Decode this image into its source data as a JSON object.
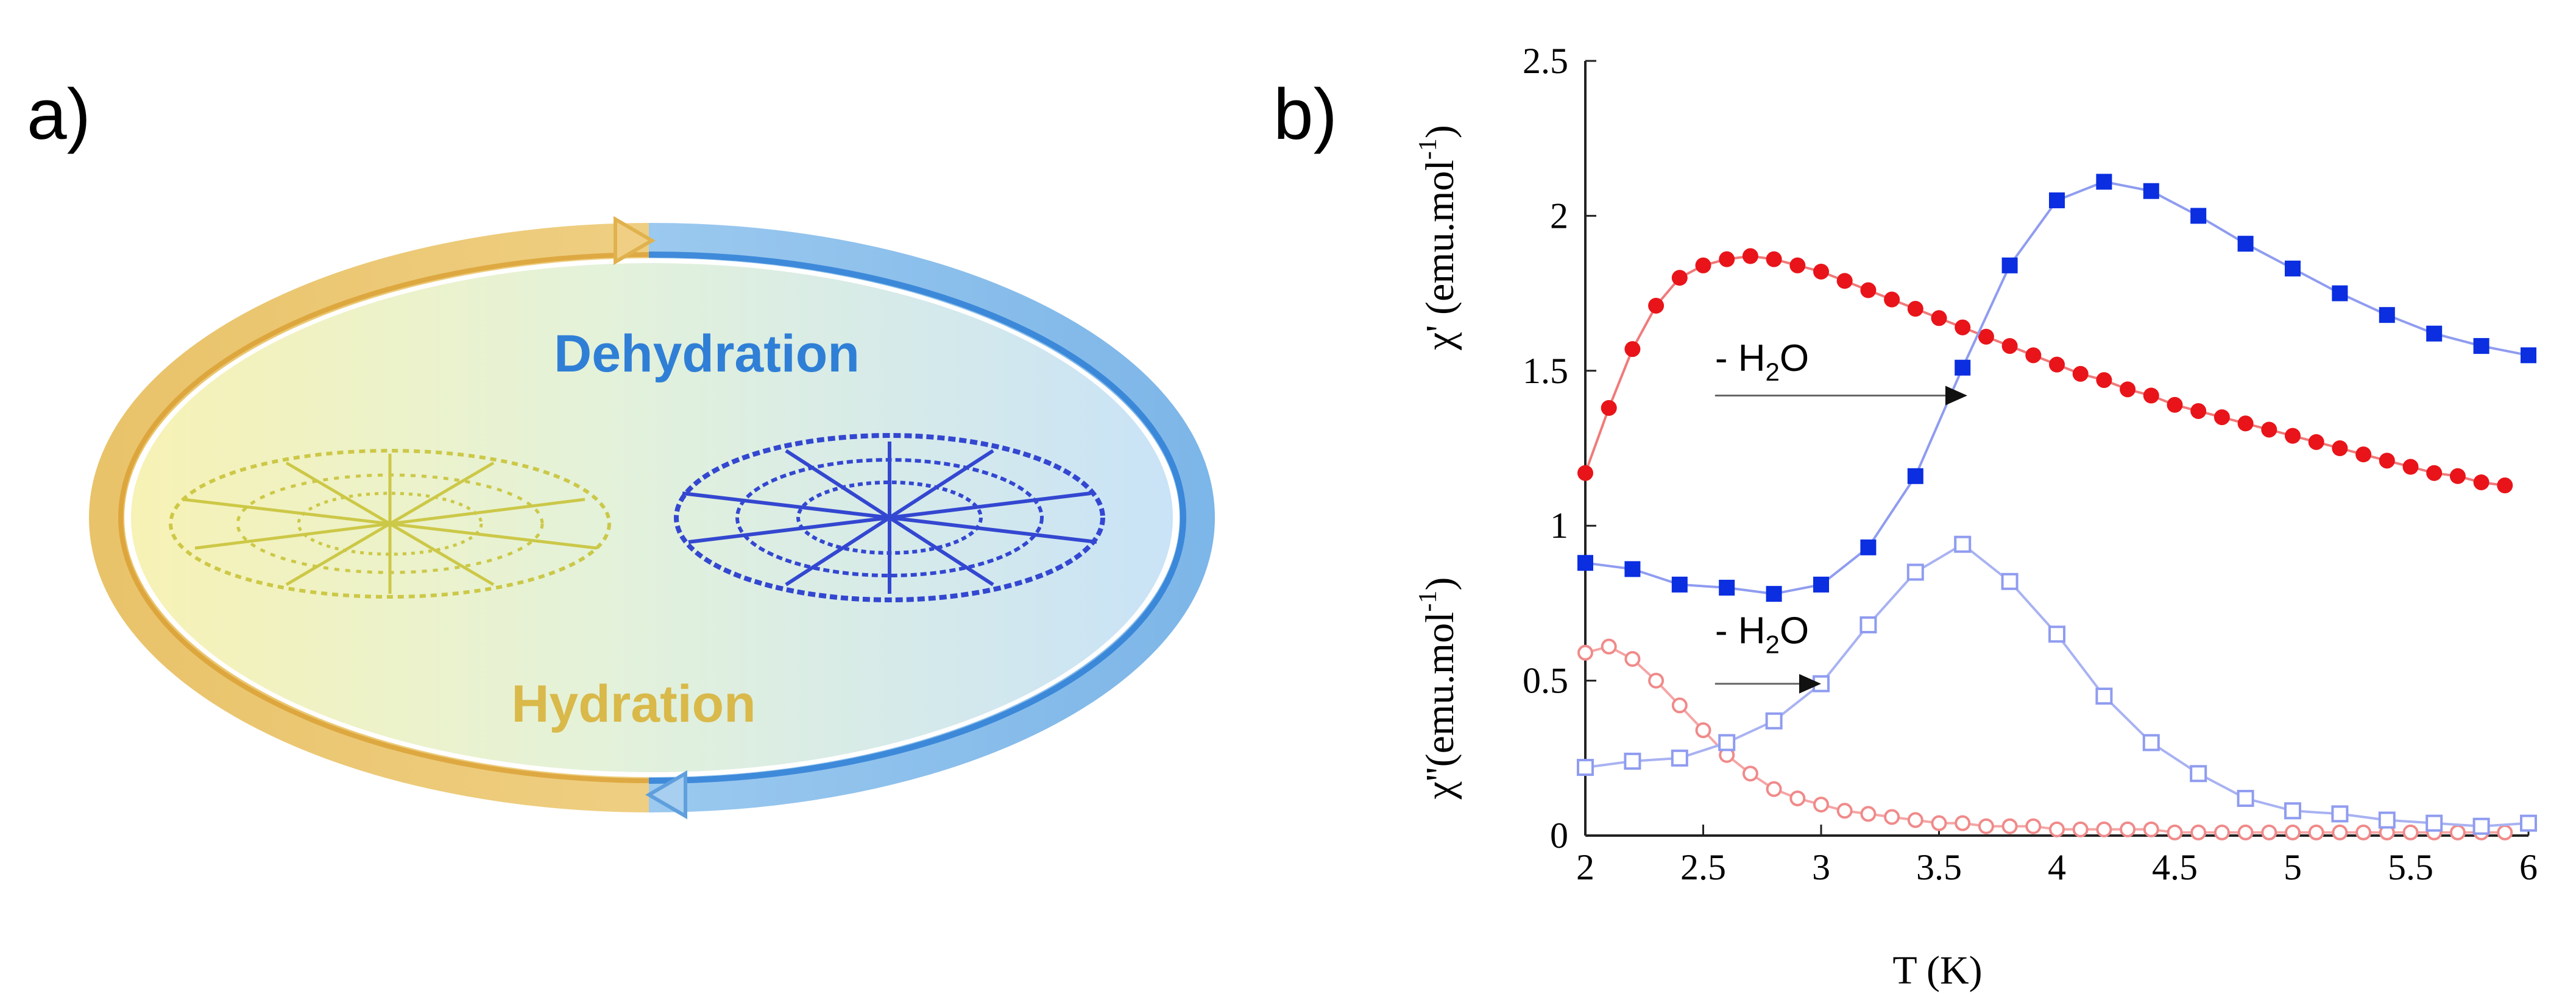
{
  "panels": {
    "a_label": "a)",
    "b_label": "b)"
  },
  "diagram": {
    "top_label": "Dehydration",
    "bottom_label": "Hydration",
    "colors": {
      "dehydration": "#2f7fd6",
      "hydration": "#d9b94a",
      "blue_arrow": "#8fbfea",
      "yellow_arrow": "#f0cf84",
      "blue_structure": "#2b3fd0",
      "yellow_structure": "#c9c43a"
    },
    "icons": [
      "cycle-arrow-icon",
      "molecular-structure-icon"
    ]
  },
  "chart_data": {
    "type": "scatter",
    "xlabel": "T (K)",
    "ylabel_upper": "χ' (emu.mol",
    "ylabel_upper_sup": "-1",
    "ylabel_upper_end": ")",
    "ylabel_lower": "χ''(emu.mol",
    "ylabel_lower_sup": "-1",
    "ylabel_lower_end": ")",
    "xlim": [
      2,
      6
    ],
    "ylim": [
      0,
      2.5
    ],
    "xticks": [
      "2",
      "2.5",
      "3",
      "3.5",
      "4",
      "4.5",
      "5",
      "5.5",
      "6"
    ],
    "yticks": [
      "0",
      "0.5",
      "1",
      "1.5",
      "2",
      "2.5"
    ],
    "annotations": [
      {
        "text_pre": "- H",
        "text_sub": "2",
        "text_post": "O",
        "arrow_from": [
          2.55,
          1.42
        ],
        "arrow_to": [
          3.62,
          1.42
        ],
        "label_at": [
          2.55,
          1.5
        ]
      },
      {
        "text_pre": "- H",
        "text_sub": "2",
        "text_post": "O",
        "arrow_from": [
          2.55,
          0.49
        ],
        "arrow_to": [
          3.0,
          0.49
        ],
        "label_at": [
          2.55,
          0.62
        ]
      }
    ],
    "series": [
      {
        "name": "chi' hydrated",
        "marker": "circle-filled",
        "color": "#e8141a",
        "line_color": "#f07a7a",
        "x": [
          2.0,
          2.1,
          2.2,
          2.3,
          2.4,
          2.5,
          2.6,
          2.7,
          2.8,
          2.9,
          3.0,
          3.1,
          3.2,
          3.3,
          3.4,
          3.5,
          3.6,
          3.7,
          3.8,
          3.9,
          4.0,
          4.1,
          4.2,
          4.3,
          4.4,
          4.5,
          4.6,
          4.7,
          4.8,
          4.9,
          5.0,
          5.1,
          5.2,
          5.3,
          5.4,
          5.5,
          5.6,
          5.7,
          5.8,
          5.9
        ],
        "y": [
          1.17,
          1.38,
          1.57,
          1.71,
          1.8,
          1.84,
          1.86,
          1.87,
          1.86,
          1.84,
          1.82,
          1.79,
          1.76,
          1.73,
          1.7,
          1.67,
          1.64,
          1.61,
          1.58,
          1.55,
          1.52,
          1.49,
          1.47,
          1.44,
          1.42,
          1.39,
          1.37,
          1.35,
          1.33,
          1.31,
          1.29,
          1.27,
          1.25,
          1.23,
          1.21,
          1.19,
          1.17,
          1.16,
          1.14,
          1.13
        ]
      },
      {
        "name": "chi' dehydrated",
        "marker": "square-filled",
        "color": "#0a2ee0",
        "line_color": "#8f9cf0",
        "x": [
          2.0,
          2.2,
          2.4,
          2.6,
          2.8,
          3.0,
          3.2,
          3.4,
          3.6,
          3.8,
          4.0,
          4.2,
          4.4,
          4.6,
          4.8,
          5.0,
          5.2,
          5.4,
          5.6,
          5.8,
          6.0
        ],
        "y": [
          0.88,
          0.86,
          0.81,
          0.8,
          0.78,
          0.81,
          0.93,
          1.16,
          1.51,
          1.84,
          2.05,
          2.11,
          2.08,
          2.0,
          1.91,
          1.83,
          1.75,
          1.68,
          1.62,
          1.58,
          1.55
        ]
      },
      {
        "name": "chi'' hydrated",
        "marker": "circle-open",
        "color": "#f08a8a",
        "line_color": "#f5a5a5",
        "x": [
          2.0,
          2.1,
          2.2,
          2.3,
          2.4,
          2.5,
          2.6,
          2.7,
          2.8,
          2.9,
          3.0,
          3.1,
          3.2,
          3.3,
          3.4,
          3.5,
          3.6,
          3.7,
          3.8,
          3.9,
          4.0,
          4.1,
          4.2,
          4.3,
          4.4,
          4.5,
          4.6,
          4.7,
          4.8,
          4.9,
          5.0,
          5.1,
          5.2,
          5.3,
          5.4,
          5.5,
          5.6,
          5.7,
          5.8,
          5.9
        ],
        "y": [
          0.59,
          0.61,
          0.57,
          0.5,
          0.42,
          0.34,
          0.26,
          0.2,
          0.15,
          0.12,
          0.1,
          0.08,
          0.07,
          0.06,
          0.05,
          0.04,
          0.04,
          0.03,
          0.03,
          0.03,
          0.02,
          0.02,
          0.02,
          0.02,
          0.02,
          0.01,
          0.01,
          0.01,
          0.01,
          0.01,
          0.01,
          0.01,
          0.01,
          0.01,
          0.01,
          0.01,
          0.01,
          0.01,
          0.01,
          0.01
        ]
      },
      {
        "name": "chi'' dehydrated",
        "marker": "square-open",
        "color": "#8f9cf0",
        "line_color": "#a8b2f2",
        "x": [
          2.0,
          2.2,
          2.4,
          2.6,
          2.8,
          3.0,
          3.2,
          3.4,
          3.6,
          3.8,
          4.0,
          4.2,
          4.4,
          4.6,
          4.8,
          5.0,
          5.2,
          5.4,
          5.6,
          5.8,
          6.0
        ],
        "y": [
          0.22,
          0.24,
          0.25,
          0.3,
          0.37,
          0.49,
          0.68,
          0.85,
          0.94,
          0.82,
          0.65,
          0.45,
          0.3,
          0.2,
          0.12,
          0.08,
          0.07,
          0.05,
          0.04,
          0.03,
          0.04
        ]
      }
    ]
  }
}
